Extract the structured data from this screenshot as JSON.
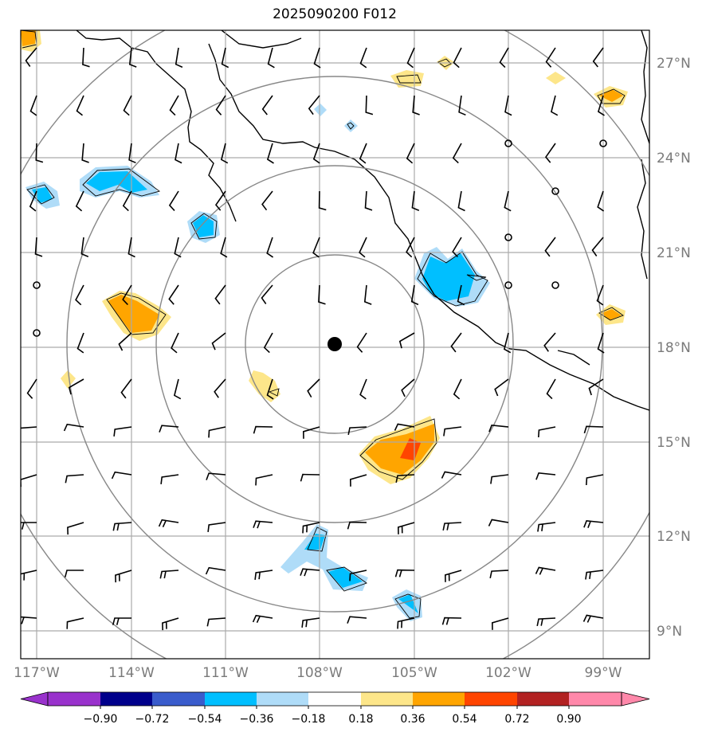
{
  "title": "2025090200 F012",
  "latitudes": [
    "27°N",
    "24°N",
    "21°N",
    "18°N",
    "15°N",
    "12°N",
    "9°N"
  ],
  "longitudes": [
    "117°W",
    "114°W",
    "111°W",
    "108°W",
    "105°W",
    "102°W",
    "99°W"
  ],
  "colorbar": {
    "colors": [
      "#9932cc",
      "#00008b",
      "#3a5ccc",
      "#00bfff",
      "#afdcf8",
      "#ffffff",
      "#fde68a",
      "#ffa500",
      "#ff4500",
      "#b22222",
      "#ff88aa",
      "#ff88aa"
    ],
    "labels": [
      "−0.90",
      "−0.72",
      "−0.54",
      "−0.36",
      "−0.18",
      "0.18",
      "0.36",
      "0.54",
      "0.72",
      "0.90"
    ]
  },
  "center_marker": "black-dot",
  "range_rings": 4
}
